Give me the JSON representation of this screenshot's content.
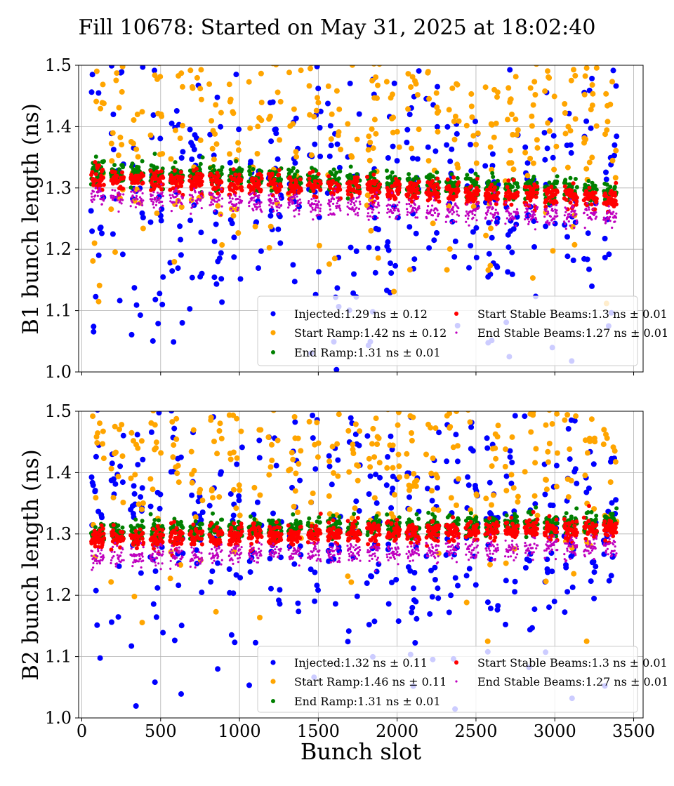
{
  "figure": {
    "title": "Fill 10678: Started on May 31, 2025 at 18:02:40",
    "xlabel": "Bunch slot"
  },
  "chart_data": [
    {
      "type": "scatter",
      "panel": "B1",
      "ylabel": "B1 bunch length (ns)",
      "xlim": [
        -20,
        3560
      ],
      "ylim": [
        1.0,
        1.5
      ],
      "xticks": [
        0,
        500,
        1000,
        1500,
        2000,
        2500,
        3000,
        3500
      ],
      "xtick_labels": [],
      "yticks": [
        1.0,
        1.1,
        1.2,
        1.3,
        1.4,
        1.5
      ],
      "ytick_labels": [
        "1.0",
        "1.1",
        "1.2",
        "1.3",
        "1.4",
        "1.5"
      ],
      "grid": true,
      "legend_position": "lower-right",
      "series": [
        {
          "name": "Injected:1.29 ns ± 0.12",
          "color": "#0000ff",
          "mean": 1.29,
          "std": 0.12
        },
        {
          "name": "Start Ramp:1.42 ns ± 0.12",
          "color": "#ffa500",
          "mean": 1.42,
          "std": 0.12
        },
        {
          "name": "End Ramp:1.31 ns ± 0.01",
          "color": "#008000",
          "mean": 1.31,
          "std": 0.01
        },
        {
          "name": "Start Stable Beams:1.3 ns ± 0.01",
          "color": "#ff0000",
          "mean": 1.3,
          "std": 0.01
        },
        {
          "name": "End Stable Beams:1.27 ns ± 0.01",
          "color": "#bf00bf",
          "mean": 1.27,
          "std": 0.01
        }
      ]
    },
    {
      "type": "scatter",
      "panel": "B2",
      "ylabel": "B2 bunch length (ns)",
      "xlim": [
        -20,
        3560
      ],
      "ylim": [
        1.0,
        1.5
      ],
      "xticks": [
        0,
        500,
        1000,
        1500,
        2000,
        2500,
        3000,
        3500
      ],
      "xtick_labels": [
        "0",
        "500",
        "1000",
        "1500",
        "2000",
        "2500",
        "3000",
        "3500"
      ],
      "yticks": [
        1.0,
        1.1,
        1.2,
        1.3,
        1.4,
        1.5
      ],
      "ytick_labels": [
        "1.0",
        "1.1",
        "1.2",
        "1.3",
        "1.4",
        "1.5"
      ],
      "grid": true,
      "legend_position": "lower-right",
      "series": [
        {
          "name": "Injected:1.32 ns ± 0.11",
          "color": "#0000ff",
          "mean": 1.32,
          "std": 0.11
        },
        {
          "name": "Start Ramp:1.46 ns ± 0.11",
          "color": "#ffa500",
          "mean": 1.46,
          "std": 0.11
        },
        {
          "name": "End Ramp:1.31 ns ± 0.01",
          "color": "#008000",
          "mean": 1.31,
          "std": 0.01
        },
        {
          "name": "Start Stable Beams:1.3 ns ± 0.01",
          "color": "#ff0000",
          "mean": 1.3,
          "std": 0.01
        },
        {
          "name": "End Stable Beams:1.27 ns ± 0.01",
          "color": "#bf00bf",
          "mean": 1.27,
          "std": 0.01
        }
      ]
    }
  ]
}
